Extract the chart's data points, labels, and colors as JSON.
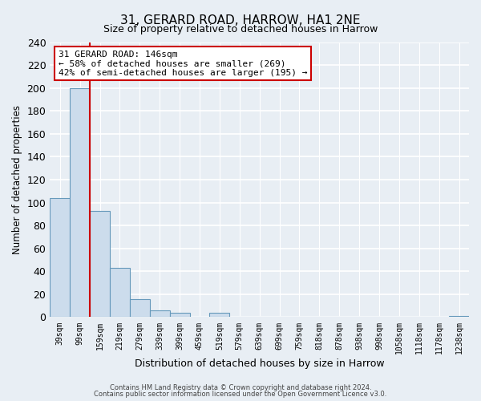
{
  "title": "31, GERARD ROAD, HARROW, HA1 2NE",
  "subtitle": "Size of property relative to detached houses in Harrow",
  "xlabel": "Distribution of detached houses by size in Harrow",
  "ylabel": "Number of detached properties",
  "bar_labels": [
    "39sqm",
    "99sqm",
    "159sqm",
    "219sqm",
    "279sqm",
    "339sqm",
    "399sqm",
    "459sqm",
    "519sqm",
    "579sqm",
    "639sqm",
    "699sqm",
    "759sqm",
    "818sqm",
    "878sqm",
    "938sqm",
    "998sqm",
    "1058sqm",
    "1118sqm",
    "1178sqm",
    "1238sqm"
  ],
  "bar_values": [
    104,
    200,
    93,
    43,
    16,
    6,
    4,
    0,
    4,
    0,
    0,
    0,
    0,
    0,
    0,
    0,
    0,
    0,
    0,
    0,
    1
  ],
  "bar_color": "#ccdcec",
  "bar_edge_color": "#6699bb",
  "ylim": [
    0,
    240
  ],
  "yticks": [
    0,
    20,
    40,
    60,
    80,
    100,
    120,
    140,
    160,
    180,
    200,
    220,
    240
  ],
  "vline_x_index": 2,
  "vline_color": "#cc0000",
  "annotation_title": "31 GERARD ROAD: 146sqm",
  "annotation_line1": "← 58% of detached houses are smaller (269)",
  "annotation_line2": "42% of semi-detached houses are larger (195) →",
  "annotation_box_facecolor": "#ffffff",
  "annotation_box_edgecolor": "#cc0000",
  "footer1": "Contains HM Land Registry data © Crown copyright and database right 2024.",
  "footer2": "Contains public sector information licensed under the Open Government Licence v3.0.",
  "bg_color": "#e8eef4",
  "plot_bg_color": "#e8eef4",
  "grid_color": "#ffffff",
  "title_fontsize": 11,
  "subtitle_fontsize": 9
}
